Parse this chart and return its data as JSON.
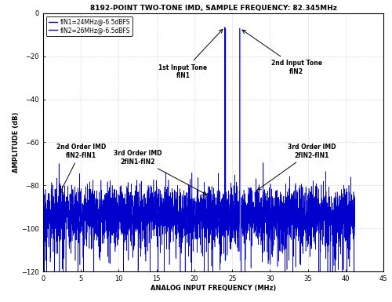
{
  "title": "8192-POINT TWO-TONE IMD, SAMPLE FREQUENCY: 82.345MHz",
  "xlabel": "ANALOG INPUT FREQUENCY (MHz)",
  "ylabel": "AMPLITUDE (dB)",
  "xlim": [
    0,
    45
  ],
  "ylim": [
    -120,
    0
  ],
  "xticks": [
    0,
    5,
    10,
    15,
    20,
    25,
    30,
    35,
    40,
    45
  ],
  "yticks": [
    0,
    -20,
    -40,
    -60,
    -80,
    -100,
    -120
  ],
  "fsample": 82.345,
  "fN1": 24.0,
  "fN2": 26.0,
  "tone_amplitude": -6.5,
  "noise_floor": -93,
  "noise_std": 6,
  "imd2_freq": 2.0,
  "imd3a_freq": 22.0,
  "imd3b_freq": 28.0,
  "imd2_amplitude": -85,
  "imd3a_amplitude": -85,
  "imd3b_amplitude": -83,
  "line_color": "#0000CC",
  "line_color_light": "#8888FF",
  "background_color": "#FFFFFF",
  "grid_color": "#BBBBBB",
  "legend_label1": "fIN1=24MHz@-6.5dBFS",
  "legend_label2": "fIN2=26MHz@-6.5dBFS",
  "annotation_1st_tone": "1st Input Tone\nfIN1",
  "annotation_2nd_tone": "2nd Input Tone\nfIN2",
  "annotation_2nd_order": "2nd Order IMD\nfIN2-fIN1",
  "annotation_3rd_order_a": "3rd Order IMD\n2fIN1-fIN2",
  "annotation_3rd_order_b": "3rd Order IMD\n2fIN2-fIN1",
  "npoints": 8192,
  "seed": 42,
  "fig_width": 5.0,
  "fig_height": 3.85,
  "dpi": 100
}
